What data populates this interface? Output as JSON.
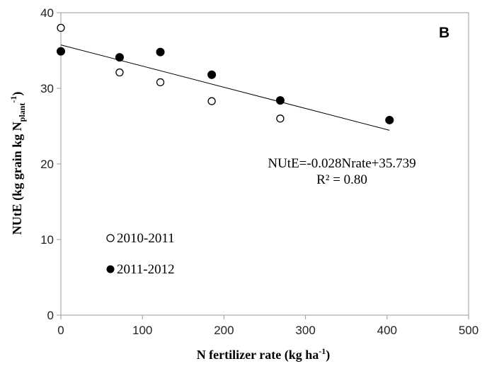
{
  "chart_data": {
    "type": "scatter",
    "panel_label": "B",
    "xlabel": "N fertilizer rate (kg ha",
    "xlabel_sup": "-1",
    "xlabel_close": ")",
    "ylabel_main": "NUtE (kg grain kg N",
    "ylabel_sub": "plant",
    "ylabel_sup": "-1",
    "ylabel_close": ")",
    "xlim": [
      0,
      500
    ],
    "ylim": [
      0,
      40
    ],
    "xticks": [
      0,
      100,
      200,
      300,
      400,
      500
    ],
    "yticks": [
      0,
      10,
      20,
      30,
      40
    ],
    "xtick_labels": [
      "0",
      "100",
      "200",
      "300",
      "400",
      "500"
    ],
    "ytick_labels": [
      "0",
      "10",
      "20",
      "30",
      "40"
    ],
    "series": [
      {
        "name": "2010-2011",
        "marker": "open-circle",
        "x": [
          0,
          72,
          122,
          185,
          269
        ],
        "y": [
          38.0,
          32.1,
          30.8,
          28.3,
          26.0
        ]
      },
      {
        "name": "2011-2012",
        "marker": "filled-circle",
        "x": [
          0,
          72,
          122,
          185,
          269,
          403
        ],
        "y": [
          34.9,
          34.1,
          34.8,
          31.8,
          28.4,
          25.8
        ]
      }
    ],
    "trendline": {
      "slope": -0.028,
      "intercept": 35.739,
      "x_range": [
        0,
        403
      ],
      "equation": "NUtE=-0.028Nrate+35.739",
      "r2": "R² = 0.80"
    },
    "legend_position": "bottom-left",
    "grid": false,
    "colors": {
      "marker": "#000000",
      "trendline": "#000000",
      "axes": "#999999"
    }
  }
}
